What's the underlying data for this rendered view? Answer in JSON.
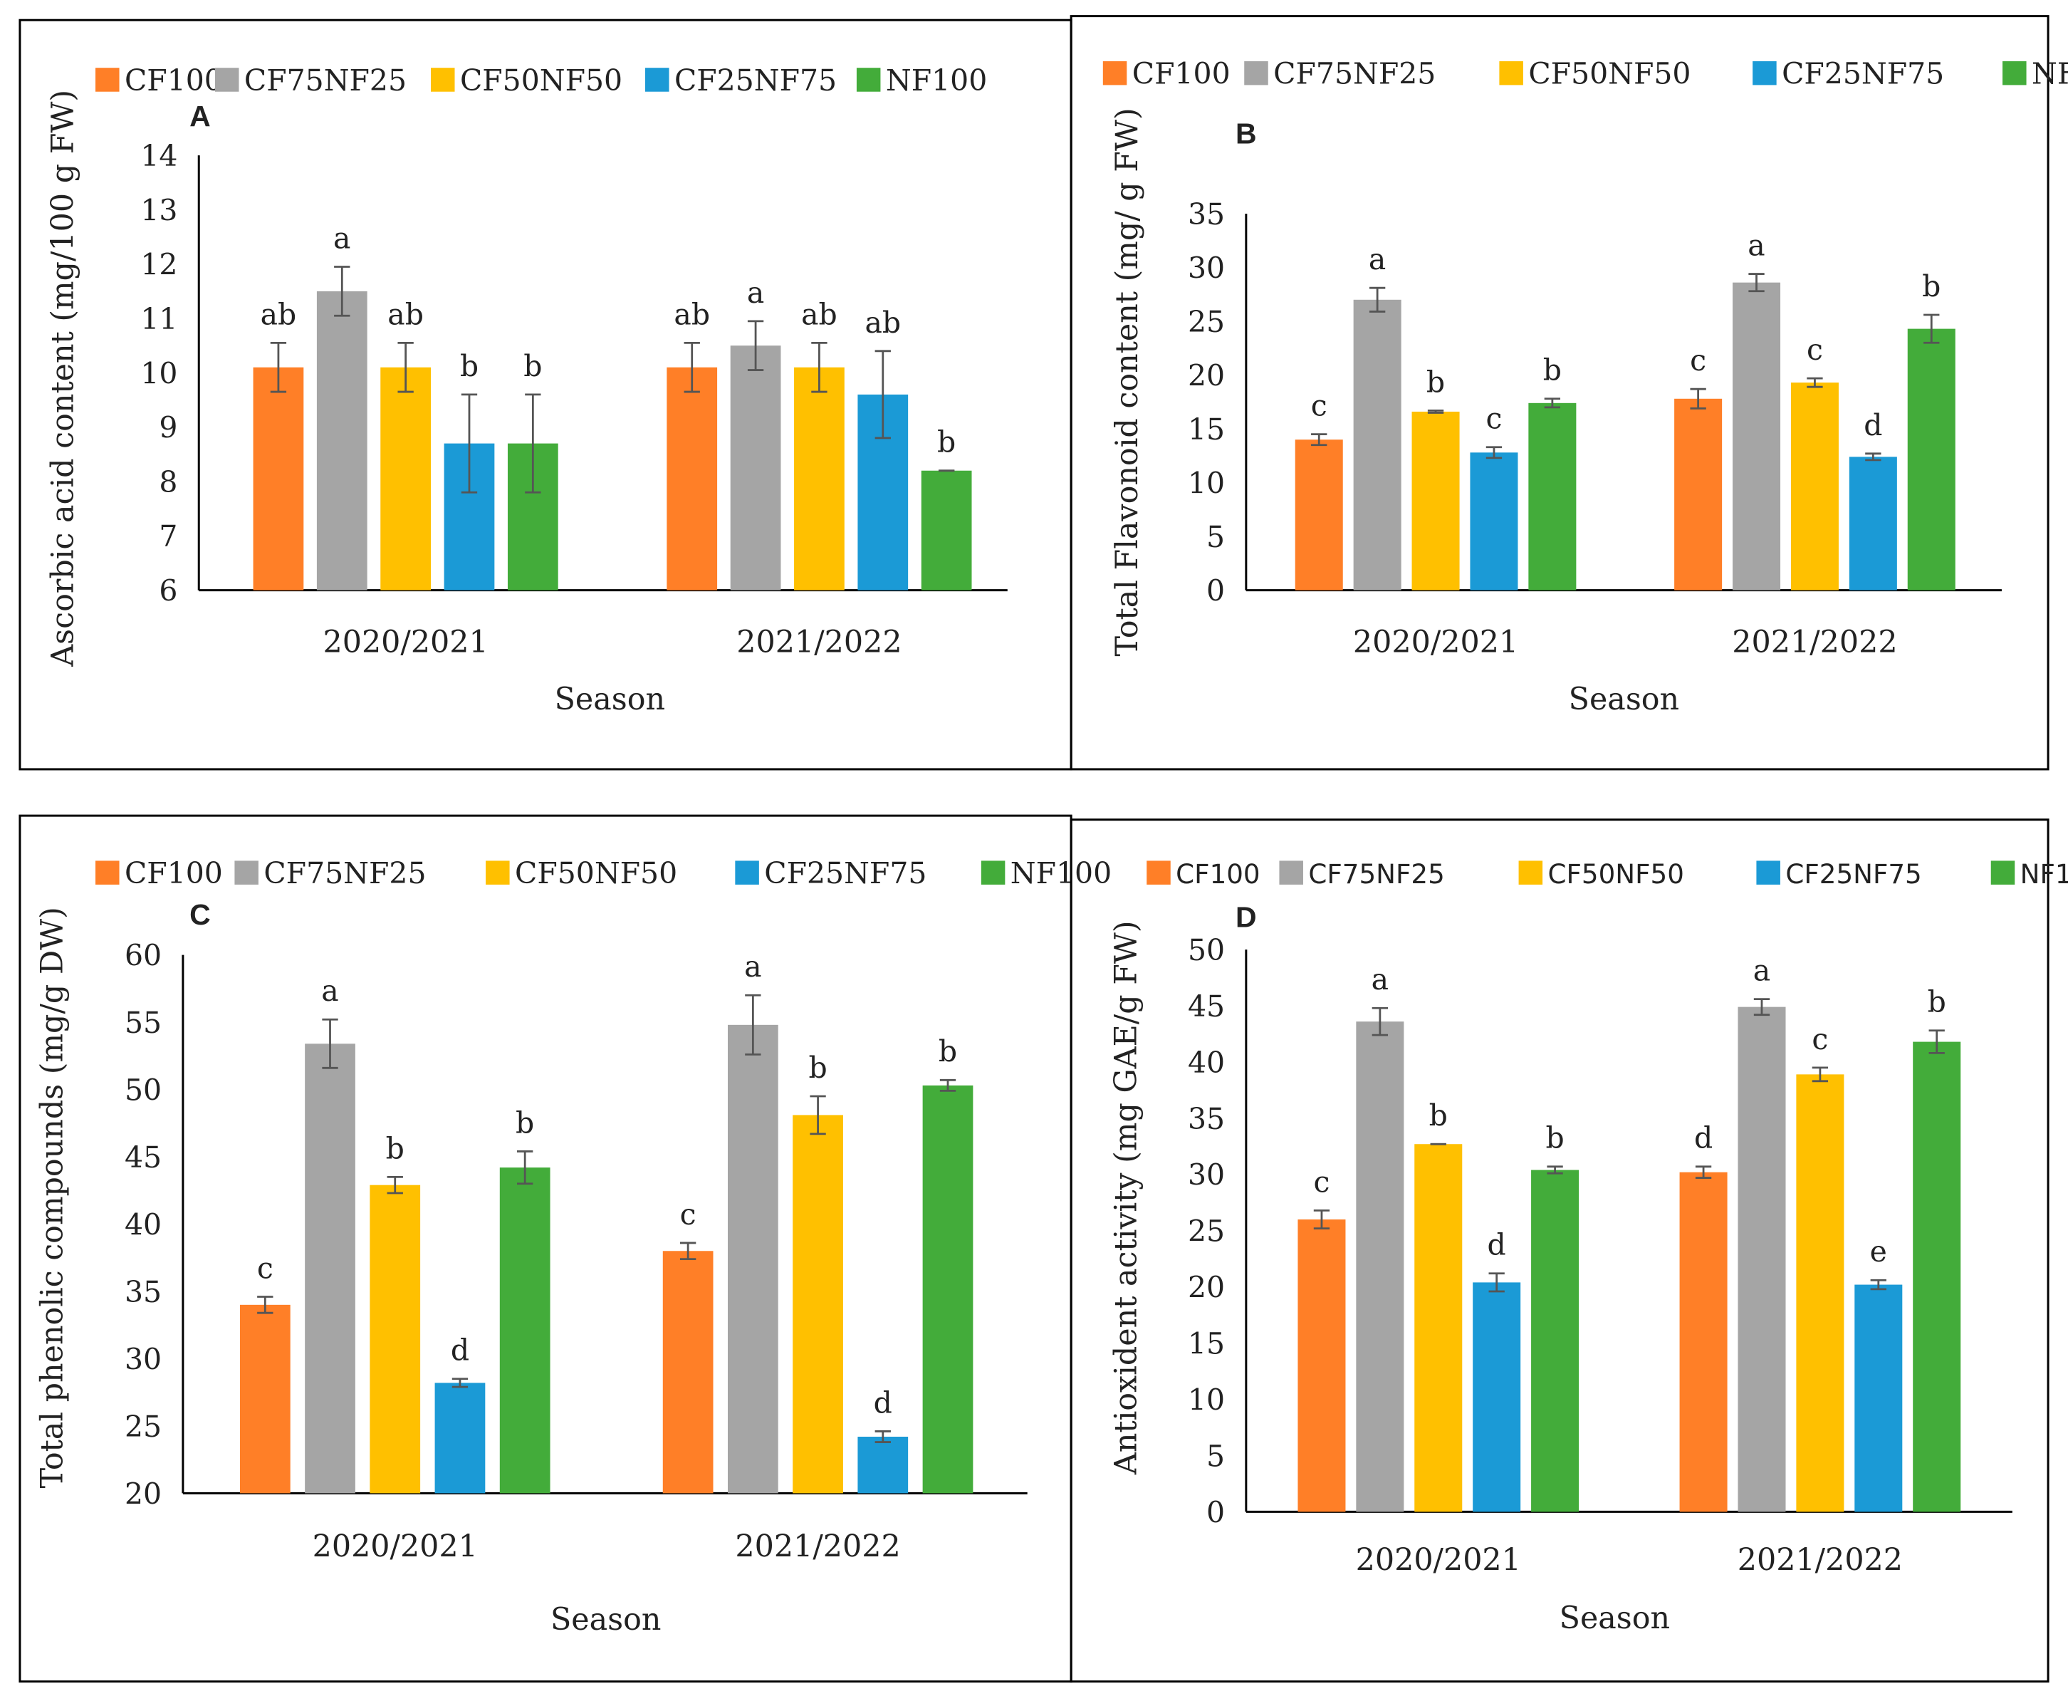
{
  "colors": {
    "CF100": "#FF7F27",
    "CF75NF25": "#A5A5A5",
    "CF50NF50": "#FFC000",
    "CF25NF75": "#1B9AD6",
    "NF100": "#43AC3A",
    "errorbar": "#555555"
  },
  "legend": [
    "CF100",
    "CF75NF25",
    "CF50NF50",
    "CF25NF75",
    "NF100"
  ],
  "chart_data": [
    {
      "panel": "A",
      "type": "bar",
      "ylabel": "Ascorbic acid content (mg/100 g FW)",
      "xlabel": "Season",
      "ylim": [
        6,
        14
      ],
      "ytick_step": 1,
      "categories": [
        "2020/2021",
        "2021/2022"
      ],
      "series": [
        {
          "name": "CF100",
          "values": [
            10.1,
            10.1
          ],
          "errors": [
            0.45,
            0.45
          ],
          "letters": [
            "ab",
            "ab"
          ]
        },
        {
          "name": "CF75NF25",
          "values": [
            11.5,
            10.5
          ],
          "errors": [
            0.45,
            0.45
          ],
          "letters": [
            "a",
            "a"
          ]
        },
        {
          "name": "CF50NF50",
          "values": [
            10.1,
            10.1
          ],
          "errors": [
            0.45,
            0.45
          ],
          "letters": [
            "ab",
            "ab"
          ]
        },
        {
          "name": "CF25NF75",
          "values": [
            8.7,
            9.6
          ],
          "errors": [
            0.9,
            0.8
          ],
          "letters": [
            "b",
            "ab"
          ]
        },
        {
          "name": "NF100",
          "values": [
            8.7,
            8.2
          ],
          "errors": [
            0.9,
            0.0
          ],
          "letters": [
            "b",
            "b"
          ]
        }
      ]
    },
    {
      "panel": "B",
      "type": "bar",
      "ylabel": "Total Flavonoid content (mg/ g FW)",
      "xlabel": "Season",
      "ylim": [
        0,
        35
      ],
      "ytick_step": 5,
      "categories": [
        "2020/2021",
        "2021/2022"
      ],
      "series": [
        {
          "name": "CF100",
          "values": [
            14.0,
            17.8
          ],
          "errors": [
            0.5,
            0.9
          ],
          "letters": [
            "c",
            "c"
          ]
        },
        {
          "name": "CF75NF25",
          "values": [
            27.0,
            28.6
          ],
          "errors": [
            1.1,
            0.8
          ],
          "letters": [
            "a",
            "a"
          ]
        },
        {
          "name": "CF50NF50",
          "values": [
            16.6,
            19.3
          ],
          "errors": [
            0.1,
            0.4
          ],
          "letters": [
            "b",
            "c"
          ]
        },
        {
          "name": "CF25NF75",
          "values": [
            12.8,
            12.4
          ],
          "errors": [
            0.5,
            0.3
          ],
          "letters": [
            "c",
            "d"
          ]
        },
        {
          "name": "NF100",
          "values": [
            17.4,
            24.3
          ],
          "errors": [
            0.4,
            1.3
          ],
          "letters": [
            "b",
            "b"
          ]
        }
      ]
    },
    {
      "panel": "C",
      "type": "bar",
      "ylabel": "Total phenolic compounds (mg/g DW)",
      "xlabel": "Season",
      "ylim": [
        20,
        60
      ],
      "ytick_step": 5,
      "categories": [
        "2020/2021",
        "2021/2022"
      ],
      "series": [
        {
          "name": "CF100",
          "values": [
            34.0,
            38.0
          ],
          "errors": [
            0.6,
            0.6
          ],
          "letters": [
            "c",
            "c"
          ]
        },
        {
          "name": "CF75NF25",
          "values": [
            53.4,
            54.8
          ],
          "errors": [
            1.8,
            2.2
          ],
          "letters": [
            "a",
            "a"
          ]
        },
        {
          "name": "CF50NF50",
          "values": [
            42.9,
            48.1
          ],
          "errors": [
            0.6,
            1.4
          ],
          "letters": [
            "b",
            "b"
          ]
        },
        {
          "name": "CF25NF75",
          "values": [
            28.2,
            24.2
          ],
          "errors": [
            0.3,
            0.4
          ],
          "letters": [
            "d",
            "d"
          ]
        },
        {
          "name": "NF100",
          "values": [
            44.2,
            50.3
          ],
          "errors": [
            1.2,
            0.4
          ],
          "letters": [
            "b",
            "b"
          ]
        }
      ]
    },
    {
      "panel": "D",
      "type": "bar",
      "ylabel": "Antioxident activity (mg GAE/g FW)",
      "xlabel": "Season",
      "ylim": [
        0,
        50
      ],
      "ytick_step": 5,
      "categories": [
        "2020/2021",
        "2021/2022"
      ],
      "series": [
        {
          "name": "CF100",
          "values": [
            26.0,
            30.2
          ],
          "errors": [
            0.8,
            0.5
          ],
          "letters": [
            "c",
            "d"
          ]
        },
        {
          "name": "CF75NF25",
          "values": [
            43.6,
            44.9
          ],
          "errors": [
            1.2,
            0.7
          ],
          "letters": [
            "a",
            "a"
          ]
        },
        {
          "name": "CF50NF50",
          "values": [
            32.7,
            38.9
          ],
          "errors": [
            0.0,
            0.6
          ],
          "letters": [
            "b",
            "c"
          ]
        },
        {
          "name": "CF25NF75",
          "values": [
            20.4,
            20.2
          ],
          "errors": [
            0.8,
            0.4
          ],
          "letters": [
            "d",
            "e"
          ]
        },
        {
          "name": "NF100",
          "values": [
            30.4,
            41.8
          ],
          "errors": [
            0.3,
            1.0
          ],
          "letters": [
            "b",
            "b"
          ]
        }
      ]
    }
  ]
}
